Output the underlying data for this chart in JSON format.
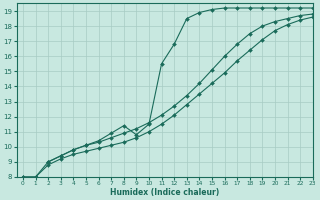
{
  "xlabel": "Humidex (Indice chaleur)",
  "bg_color": "#c8e8e0",
  "line_color": "#1a6b5a",
  "grid_color": "#a8ccc4",
  "xlim": [
    -0.5,
    23
  ],
  "ylim": [
    8,
    19.5
  ],
  "xticks": [
    0,
    1,
    2,
    3,
    4,
    5,
    6,
    7,
    8,
    9,
    10,
    11,
    12,
    13,
    14,
    15,
    16,
    17,
    18,
    19,
    20,
    21,
    22,
    23
  ],
  "yticks": [
    8,
    9,
    10,
    11,
    12,
    13,
    14,
    15,
    16,
    17,
    18,
    19
  ],
  "line1_x": [
    0,
    1,
    2,
    3,
    4,
    5,
    6,
    7,
    8,
    9,
    10,
    11,
    12,
    13,
    14,
    15,
    16,
    17,
    18,
    19,
    20,
    21,
    22,
    23
  ],
  "line1_y": [
    8.0,
    8.0,
    8.8,
    9.2,
    9.5,
    9.7,
    9.9,
    10.1,
    10.3,
    10.6,
    11.0,
    11.5,
    12.1,
    12.8,
    13.5,
    14.2,
    14.9,
    15.7,
    16.4,
    17.1,
    17.7,
    18.1,
    18.4,
    18.6
  ],
  "line2_x": [
    0,
    1,
    2,
    3,
    4,
    5,
    6,
    7,
    8,
    9,
    10,
    11,
    12,
    13,
    14,
    15,
    16,
    17,
    18,
    19,
    20,
    21,
    22,
    23
  ],
  "line2_y": [
    8.0,
    8.0,
    9.0,
    9.4,
    9.8,
    10.1,
    10.3,
    10.6,
    10.9,
    11.2,
    11.6,
    12.1,
    12.7,
    13.4,
    14.2,
    15.1,
    16.0,
    16.8,
    17.5,
    18.0,
    18.3,
    18.5,
    18.7,
    18.8
  ],
  "line3_x": [
    2,
    3,
    4,
    5,
    6,
    7,
    8,
    9,
    10,
    11,
    12,
    13,
    14,
    15,
    16,
    17,
    18,
    19,
    20,
    21,
    22,
    23
  ],
  "line3_y": [
    9.0,
    9.4,
    9.8,
    10.1,
    10.4,
    10.9,
    11.4,
    10.8,
    11.5,
    15.5,
    16.8,
    18.5,
    18.9,
    19.1,
    19.2,
    19.2,
    19.2,
    19.2,
    19.2,
    19.2,
    19.2,
    19.2
  ],
  "marker": "D",
  "markersize": 2.0
}
